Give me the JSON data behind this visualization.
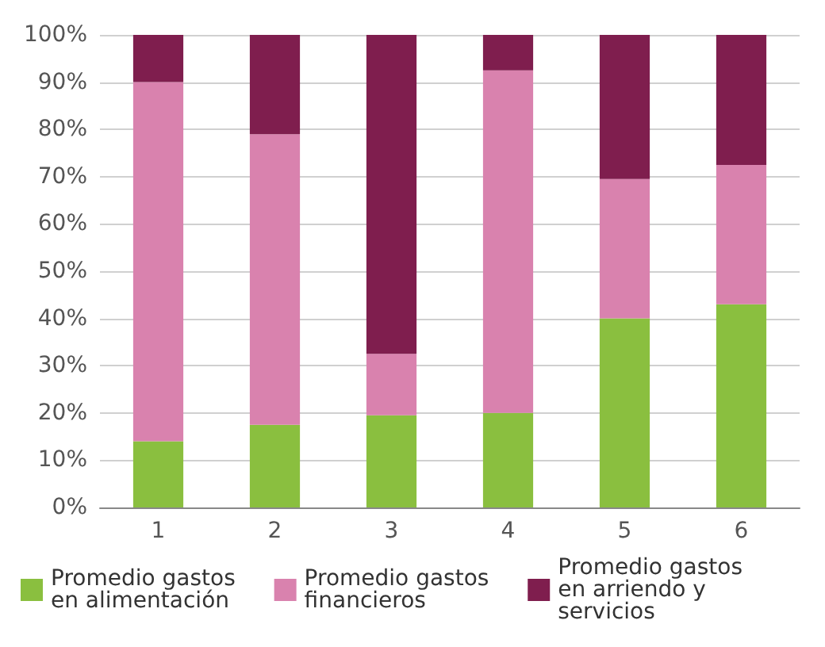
{
  "chart_data": {
    "type": "bar",
    "stacked": true,
    "categories": [
      "1",
      "2",
      "3",
      "4",
      "5",
      "6"
    ],
    "series": [
      {
        "name": "Promedio gastos en alimentación",
        "color": "#8abf3f",
        "values": [
          14,
          17.5,
          19.5,
          20,
          40,
          43
        ]
      },
      {
        "name": "Promedio gastos financieros",
        "color": "#d982ae",
        "values": [
          76,
          61.5,
          13,
          72.5,
          29.5,
          29.5
        ]
      },
      {
        "name": "Promedio gastos en arriendo y servicios",
        "color": "#7f1e4e",
        "values": [
          10,
          21,
          67.5,
          7.5,
          30.5,
          27.5
        ]
      }
    ],
    "ylim": [
      0,
      100
    ],
    "yticks": [
      {
        "value": 0,
        "label": "0%"
      },
      {
        "value": 10,
        "label": "10%"
      },
      {
        "value": 20,
        "label": "20%"
      },
      {
        "value": 30,
        "label": "30%"
      },
      {
        "value": 40,
        "label": "40%"
      },
      {
        "value": 50,
        "label": "50%"
      },
      {
        "value": 60,
        "label": "60%"
      },
      {
        "value": 70,
        "label": "70%"
      },
      {
        "value": 80,
        "label": "80%"
      },
      {
        "value": 90,
        "label": "90%"
      },
      {
        "value": 100,
        "label": "100%"
      }
    ],
    "grid": "y",
    "legend": "bottom"
  }
}
